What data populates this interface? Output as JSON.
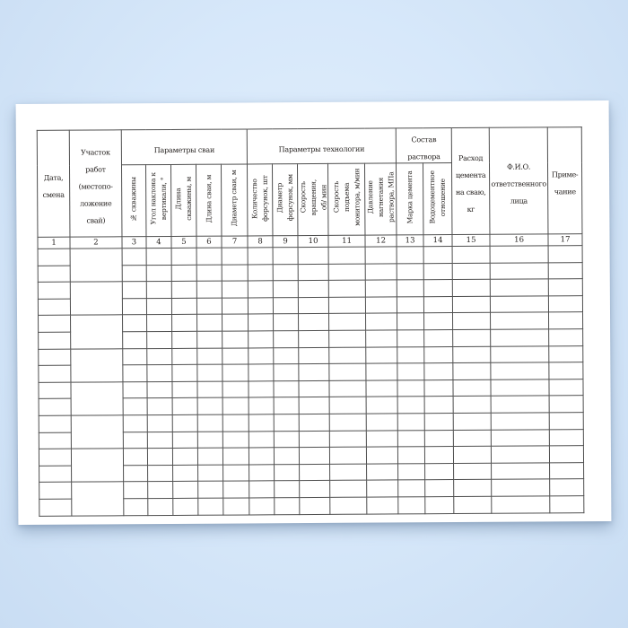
{
  "page": {
    "background_color": "#d7e8fa",
    "paper_color": "#ffffff",
    "line_color": "#4f4f4f",
    "text_color": "#262220"
  },
  "table": {
    "group_headers": [
      {
        "label": "Параметры сваи"
      },
      {
        "label": "Параметры технологии"
      },
      {
        "label": "Состав\nраствора"
      }
    ],
    "columns": [
      {
        "num": "1",
        "label": "Дата,\nсмена"
      },
      {
        "num": "2",
        "label": "Участок\nработ\n(местопо-\nложение\nсвай)"
      },
      {
        "num": "3",
        "label": "№ скважины"
      },
      {
        "num": "4",
        "label": "Угол наклона к\nвертикали, °"
      },
      {
        "num": "5",
        "label": "Длина\nскважины, м"
      },
      {
        "num": "6",
        "label": "Длина сваи, м"
      },
      {
        "num": "7",
        "label": "Диаметр сваи, м"
      },
      {
        "num": "8",
        "label": "Количество\nфорсунок, шт"
      },
      {
        "num": "9",
        "label": "Диаметр\nфорсунок, мм"
      },
      {
        "num": "10",
        "label": "Скорость\nвращения,\nоб/ мин"
      },
      {
        "num": "11",
        "label": "Скорость\nподъема\nмонитора, м/мин"
      },
      {
        "num": "12",
        "label": "Давление\nнагнетания\nраствора, МПа"
      },
      {
        "num": "13",
        "label": "Марка цемента"
      },
      {
        "num": "14",
        "label": "Водоцементное\nотношение"
      },
      {
        "num": "15",
        "label": "Расход\nцемента\nна сваю,\nкг"
      },
      {
        "num": "16",
        "label": "Ф.И.О.\nответственного\nлица"
      },
      {
        "num": "17",
        "label": "Приме-\nчание"
      }
    ],
    "body_rows": 16
  }
}
